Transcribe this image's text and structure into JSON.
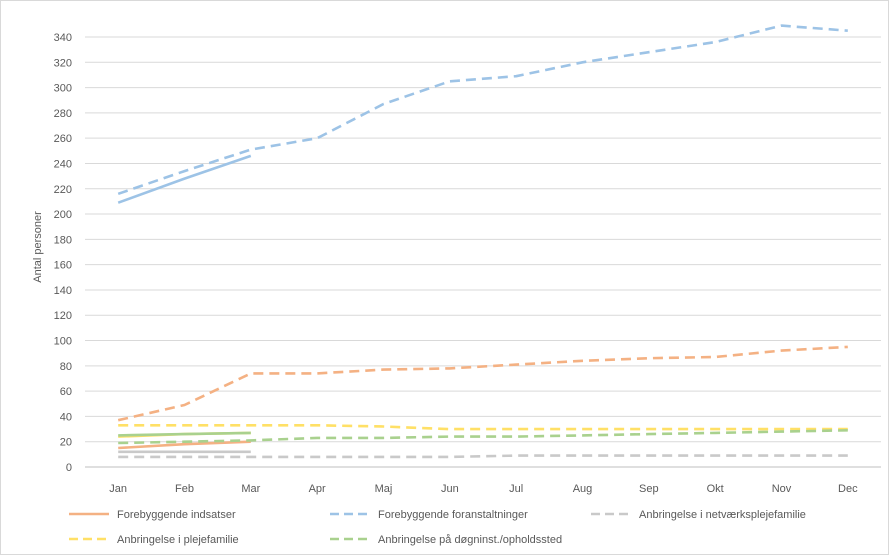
{
  "chart_data": {
    "type": "line",
    "title": "",
    "xlabel": "",
    "ylabel": "Antal personer",
    "ylim": [
      0,
      340
    ],
    "ytick_step": 20,
    "grid": "horizontal",
    "legend_placement": "bottom",
    "categories": [
      "Jan",
      "Feb",
      "Mar",
      "Apr",
      "Maj",
      "Jun",
      "Jul",
      "Aug",
      "Sep",
      "Okt",
      "Nov",
      "Dec"
    ],
    "series": [
      {
        "name": "Forebyggende indsatser",
        "color": "#f4b183",
        "dash": false,
        "values": [
          15,
          18,
          20,
          null,
          null,
          null,
          null,
          null,
          null,
          null,
          null,
          null
        ]
      },
      {
        "name": "Forebyggende foranstaltninger",
        "color": "#9dc3e6",
        "dash": true,
        "values": [
          216,
          234,
          251,
          260,
          287,
          305,
          309,
          320,
          328,
          336,
          349,
          345
        ]
      },
      {
        "name": "Anbringelse i netværksplejefamilie",
        "color": "#c9c9c9",
        "dash": true,
        "values": [
          8,
          8,
          8,
          8,
          8,
          8,
          9,
          9,
          9,
          9,
          9,
          9
        ]
      },
      {
        "name": "Anbringelse i plejefamilie",
        "color": "#ffe066",
        "dash": true,
        "values": [
          33,
          33,
          33,
          33,
          32,
          30,
          30,
          30,
          30,
          30,
          30,
          30
        ]
      },
      {
        "name": "Anbringelse på døgninst./opholdssted",
        "color": "#a9d18e",
        "dash": true,
        "values": [
          19,
          20,
          21,
          23,
          23,
          24,
          24,
          25,
          26,
          27,
          28,
          29
        ]
      }
    ],
    "extra_lines": [
      {
        "color": "#f4b183",
        "dash": true,
        "values": [
          37,
          49,
          74,
          74,
          77,
          78,
          81,
          84,
          86,
          87,
          92,
          95
        ]
      },
      {
        "color": "#9dc3e6",
        "dash": false,
        "values": [
          209,
          228,
          246,
          null,
          null,
          null,
          null,
          null,
          null,
          null,
          null,
          null
        ]
      },
      {
        "color": "#c9c9c9",
        "dash": false,
        "values": [
          12,
          12,
          12,
          null,
          null,
          null,
          null,
          null,
          null,
          null,
          null,
          null
        ]
      },
      {
        "color": "#ffe066",
        "dash": false,
        "values": [
          24,
          26,
          27,
          null,
          null,
          null,
          null,
          null,
          null,
          null,
          null,
          null
        ]
      },
      {
        "color": "#a9d18e",
        "dash": false,
        "values": [
          25,
          26,
          27,
          null,
          null,
          null,
          null,
          null,
          null,
          null,
          null,
          null
        ]
      }
    ]
  }
}
